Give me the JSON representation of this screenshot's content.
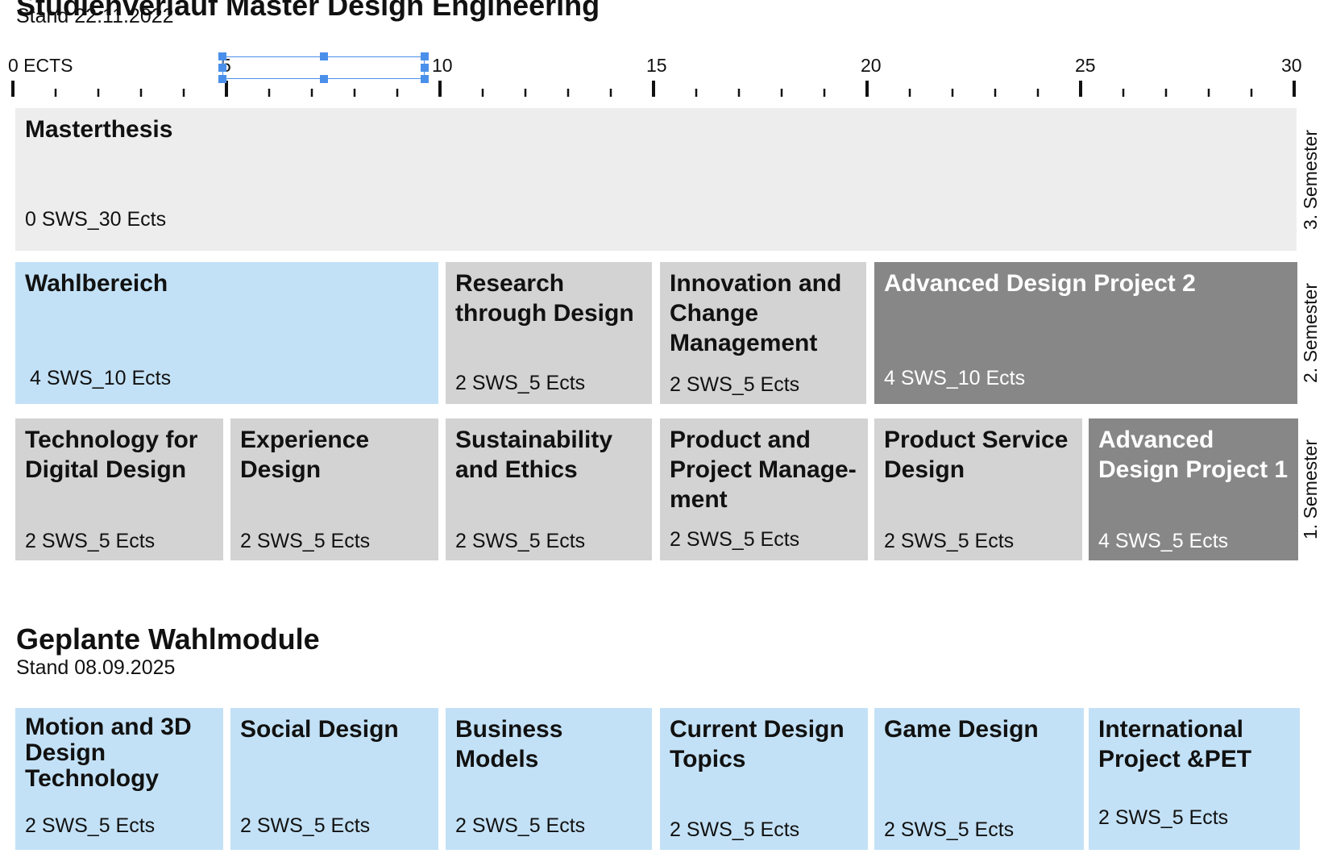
{
  "header": {
    "title_cut": "Studienverlauf Master Design Engineering",
    "stand": "Stand 22.11.2022"
  },
  "scale": {
    "unit_label": "0 ECTS",
    "labels": [
      "5",
      "10",
      "15",
      "20",
      "25",
      "30"
    ],
    "max": 30,
    "minor_step": 1,
    "major_step": 5
  },
  "semesters": {
    "s3": "3. Semester",
    "s2": "2. Semester",
    "s1": "1. Semester"
  },
  "curriculum": {
    "masterthesis": {
      "name": "Masterthesis",
      "ects": "0 SWS_30 Ects"
    },
    "wahlbereich": {
      "name": "Wahlbereich",
      "ects": "4 SWS_10 Ects"
    },
    "research": {
      "name": "Research through Design",
      "ects": "2 SWS_5 Ects"
    },
    "innovation": {
      "name": "Innovation and Change Management",
      "ects": "2 SWS_5 Ects"
    },
    "adp2": {
      "name": "Advanced Design Project 2",
      "ects": "4 SWS_10 Ects"
    },
    "technology": {
      "name": "Technology for Digital Design",
      "ects": "2 SWS_5 Ects"
    },
    "experience": {
      "name": "Experience Design",
      "ects": "2 SWS_5 Ects"
    },
    "sustainability": {
      "name": "Sustainability and Ethics",
      "ects": "2 SWS_5 Ects"
    },
    "product_project": {
      "name": "Product and Project Manage-ment",
      "ects": "2 SWS_5 Ects"
    },
    "product_service": {
      "name": "Product Service Design",
      "ects": "2 SWS_5 Ects"
    },
    "adp1": {
      "name": "Advanced Design Project 1",
      "ects": "4 SWS_5 Ects"
    }
  },
  "wahlmodule": {
    "title": "Geplante Wahlmodule",
    "stand": "Stand 08.09.2025",
    "motion": {
      "name": "Motion and 3D Design Technology",
      "ects": "2 SWS_5 Ects"
    },
    "social": {
      "name": "Social Design",
      "ects": "2 SWS_5 Ects"
    },
    "business": {
      "name": "Business Models",
      "ects": "2 SWS_5 Ects"
    },
    "current": {
      "name": "Current Design Topics",
      "ects": "2 SWS_5 Ects"
    },
    "game": {
      "name": "Game Design",
      "ects": "2 SWS_5 Ects"
    },
    "international": {
      "name": "International Project &PET",
      "ects": "2 SWS_5 Ects"
    }
  },
  "colors": {
    "pflicht": "#d3d3d3",
    "projekt": "#878787",
    "wahl": "#c3e1f6",
    "thesis": "#ededed",
    "selection": "#4a90ea"
  }
}
